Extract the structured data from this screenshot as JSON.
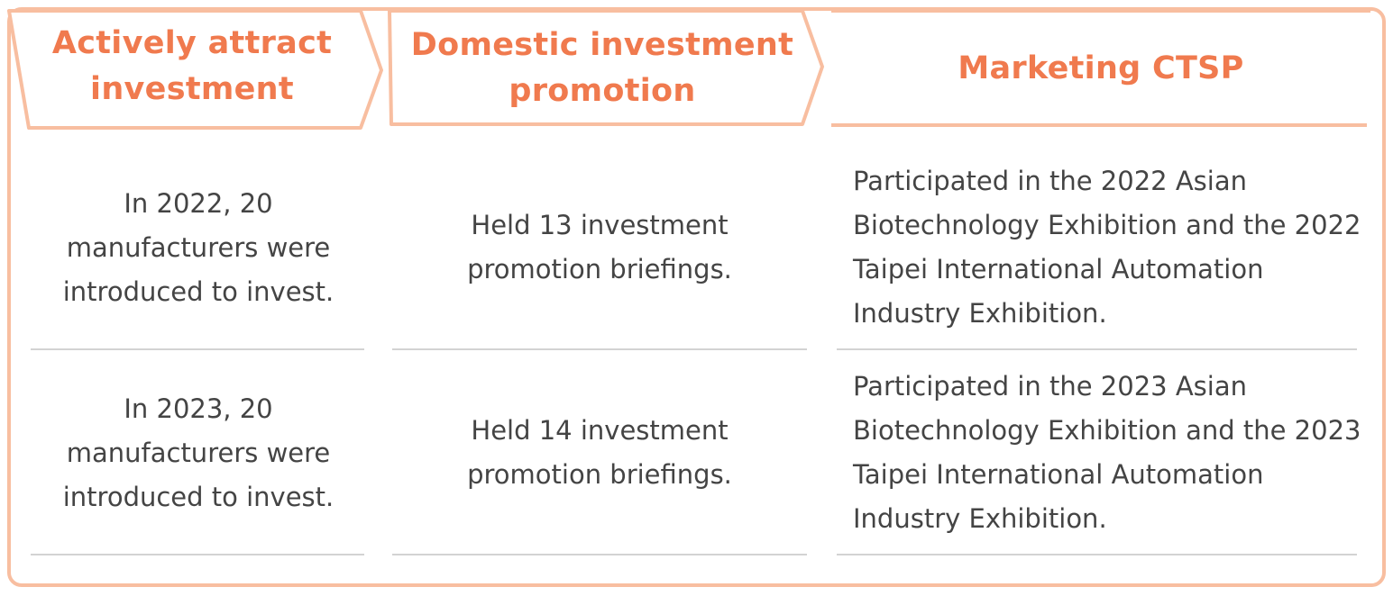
{
  "colors": {
    "accent": "#f07a4e",
    "border": "#f8bea0",
    "text": "#444444",
    "divider": "#d3d3d3"
  },
  "headers": [
    "Actively attract investment",
    "Domestic investment promotion",
    "Marketing CTSP"
  ],
  "rows": [
    {
      "attract": "In 2022, 20 manufacturers were introduced to invest.",
      "domestic": "Held 13 investment promotion briefings.",
      "marketing": "Participated in the 2022 Asian Biotechnology Exhibition and the 2022 Taipei International Automation Industry Exhibition."
    },
    {
      "attract": "In 2023, 20 manufacturers were introduced to invest.",
      "domestic": "Held 14 investment promotion briefings.",
      "marketing": "Participated in the 2023 Asian Biotechnology Exhibition and the 2023 Taipei International Automation Industry Exhibition."
    }
  ]
}
